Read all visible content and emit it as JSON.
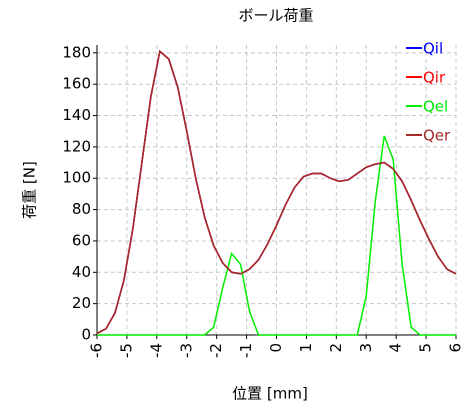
{
  "chart_data": {
    "type": "line",
    "title": "ボール荷重",
    "x_label": "位置 [mm]",
    "y_label": "荷重 [N]",
    "x": [
      -6,
      -5.7,
      -5.4,
      -5.1,
      -4.8,
      -4.5,
      -4.2,
      -3.9,
      -3.6,
      -3.3,
      -3,
      -2.7,
      -2.4,
      -2.1,
      -1.8,
      -1.5,
      -1.2,
      -0.9,
      -0.6,
      -0.3,
      0,
      0.3,
      0.6,
      0.9,
      1.2,
      1.5,
      1.8,
      2.1,
      2.4,
      2.7,
      3,
      3.3,
      3.6,
      3.9,
      4.2,
      4.5,
      4.8,
      5.1,
      5.4,
      5.7,
      6
    ],
    "series": [
      {
        "name": "Qil",
        "color": "#0000ff",
        "values": [
          1,
          4,
          14,
          35,
          68,
          110,
          152,
          181,
          176,
          158,
          130,
          100,
          75,
          57,
          46,
          40,
          39,
          42,
          48,
          58,
          70,
          83,
          94,
          101,
          103,
          103,
          100,
          98,
          99,
          103,
          107,
          109,
          110,
          106,
          98,
          86,
          73,
          61,
          50,
          42,
          39
        ]
      },
      {
        "name": "Qir",
        "color": "#ff0000",
        "values": [
          1,
          4,
          14,
          35,
          68,
          110,
          152,
          181,
          176,
          158,
          130,
          100,
          75,
          57,
          46,
          40,
          39,
          42,
          48,
          58,
          70,
          83,
          94,
          101,
          103,
          103,
          100,
          98,
          99,
          103,
          107,
          109,
          110,
          106,
          98,
          86,
          73,
          61,
          50,
          42,
          39
        ]
      },
      {
        "name": "Qel",
        "color": "#00ee00",
        "values": [
          0,
          0,
          0,
          0,
          0,
          0,
          0,
          0,
          0,
          0,
          0,
          0,
          0,
          5,
          30,
          52,
          45,
          15,
          0,
          0,
          0,
          0,
          0,
          0,
          0,
          0,
          0,
          0,
          0,
          0,
          25,
          85,
          127,
          112,
          45,
          5,
          0,
          0,
          0,
          0,
          0
        ]
      },
      {
        "name": "Qer",
        "color": "#a52a2a",
        "values": [
          1,
          4,
          14,
          35,
          68,
          110,
          152,
          181,
          176,
          158,
          130,
          100,
          75,
          57,
          46,
          40,
          39,
          42,
          48,
          58,
          70,
          83,
          94,
          101,
          103,
          103,
          100,
          98,
          99,
          103,
          107,
          109,
          110,
          106,
          98,
          86,
          73,
          61,
          50,
          42,
          39
        ]
      }
    ],
    "xlim": [
      -6,
      6
    ],
    "xticks": [
      -6,
      -5,
      -4,
      -3,
      -2,
      -1,
      0,
      1,
      2,
      3,
      4,
      5,
      6
    ],
    "ylim": [
      0,
      185
    ],
    "yticks": [
      0,
      20,
      40,
      60,
      80,
      100,
      120,
      140,
      160,
      180
    ],
    "grid": true,
    "legend": "upper right"
  }
}
